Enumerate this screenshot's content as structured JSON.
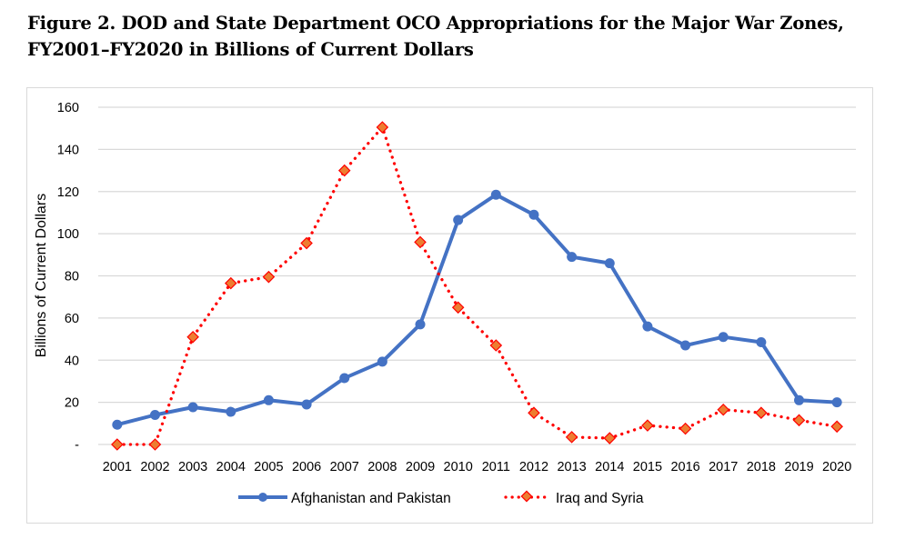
{
  "figure": {
    "title_line1": "Figure 2. DOD and State Department OCO Appropriations for the Major War Zones,",
    "title_line2": "FY2001–FY2020 in Billions of Current Dollars"
  },
  "chart_data": {
    "type": "line",
    "title": "Figure 2. DOD and State Department OCO Appropriations for the Major War Zones, FY2001–FY2020 in Billions of Current Dollars",
    "xlabel": "",
    "ylabel": "Billions of Current Dollars",
    "ylim": [
      0,
      160
    ],
    "yticks": [
      0,
      20,
      40,
      60,
      80,
      100,
      120,
      140,
      160
    ],
    "ytick_labels": [
      "-",
      "20",
      "40",
      "60",
      "80",
      "100",
      "120",
      "140",
      "160"
    ],
    "grid": "horizontal",
    "legend_position": "bottom",
    "categories": [
      "2001",
      "2002",
      "2003",
      "2004",
      "2005",
      "2006",
      "2007",
      "2008",
      "2009",
      "2010",
      "2011",
      "2012",
      "2013",
      "2014",
      "2015",
      "2016",
      "2017",
      "2018",
      "2019",
      "2020"
    ],
    "series": [
      {
        "name": "Afghanistan and Pakistan",
        "style": "solid",
        "marker": "circle",
        "color": "#4472c4",
        "values": [
          9.4,
          14,
          17.7,
          15.5,
          21,
          19,
          31.5,
          39.3,
          57,
          106.5,
          118.5,
          109,
          89,
          86,
          56,
          47,
          51,
          48.5,
          21,
          20
        ]
      },
      {
        "name": "Iraq and Syria",
        "style": "dotted",
        "marker": "diamond",
        "color": "#ff0000",
        "marker_fill": "#ed7d31",
        "values": [
          0,
          0,
          51,
          76.5,
          79.5,
          95.5,
          130,
          150.5,
          96,
          65,
          47,
          15,
          3.5,
          3,
          9,
          7.5,
          16.5,
          15,
          11.5,
          8.5
        ]
      }
    ]
  }
}
